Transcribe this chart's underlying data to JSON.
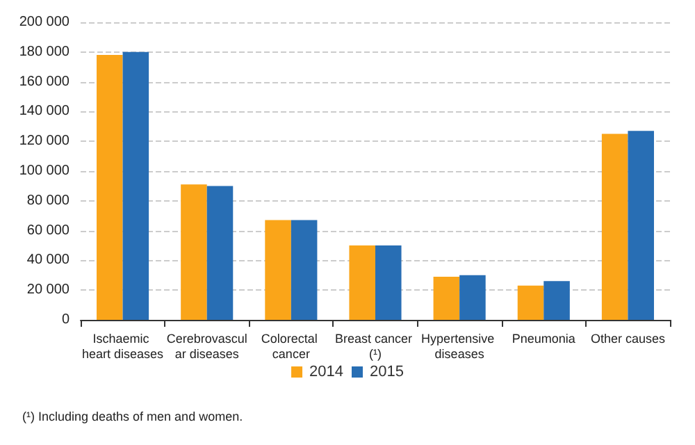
{
  "chart_data": {
    "type": "bar",
    "categories": [
      "Ischaemic heart diseases",
      "Cerebrovascular diseases",
      "Colorectal cancer",
      "Breast cancer (¹)",
      "Hypertensive diseases",
      "Pneumonia",
      "Other causes"
    ],
    "series": [
      {
        "name": "2014",
        "color": "#faa519",
        "values": [
          178000,
          91000,
          67000,
          50000,
          29000,
          23000,
          125000
        ]
      },
      {
        "name": "2015",
        "color": "#286eb4",
        "values": [
          180000,
          90000,
          67000,
          50000,
          30000,
          26000,
          127000
        ]
      }
    ],
    "ylim": [
      0,
      200000
    ],
    "yticks": [
      {
        "value": 0,
        "label": "0"
      },
      {
        "value": 20000,
        "label": "20 000"
      },
      {
        "value": 40000,
        "label": "40 000"
      },
      {
        "value": 60000,
        "label": "60 000"
      },
      {
        "value": 80000,
        "label": "80 000"
      },
      {
        "value": 100000,
        "label": "100 000"
      },
      {
        "value": 120000,
        "label": "120 000"
      },
      {
        "value": 140000,
        "label": "140 000"
      },
      {
        "value": 160000,
        "label": "160 000"
      },
      {
        "value": 180000,
        "label": "180 000"
      },
      {
        "value": 200000,
        "label": "200 000"
      }
    ],
    "grid": "y",
    "legend": "bottom",
    "annotations": [
      "(¹) Including deaths of men and women."
    ]
  }
}
